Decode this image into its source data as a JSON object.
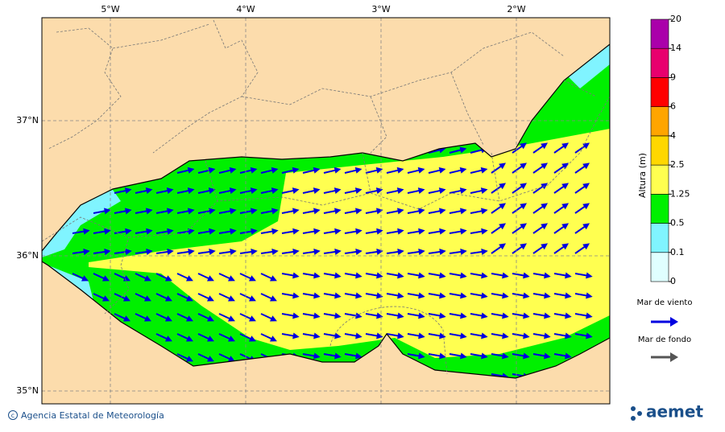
{
  "map": {
    "lon_labels": [
      "5°W",
      "4°W",
      "3°W",
      "2°W"
    ],
    "lat_labels": [
      "37°N",
      "36°N",
      "35°N"
    ]
  },
  "colorbar": {
    "title": "Altura (m)",
    "ticks": [
      "0",
      "0.1",
      "0.5",
      "1.25",
      "2.5",
      "4",
      "6",
      "9",
      "14",
      "20"
    ]
  },
  "legend": {
    "items": [
      {
        "label": "Mar de viento"
      },
      {
        "label": "Mar de fondo"
      }
    ]
  },
  "footer": {
    "credit": "Agencia Estatal de Meteorología",
    "logo": "aemet"
  }
}
